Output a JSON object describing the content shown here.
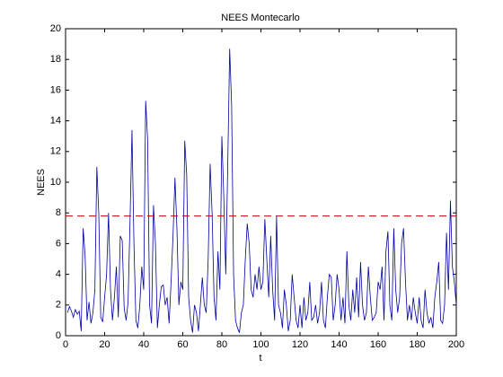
{
  "chart_data": {
    "type": "line",
    "title": "NEES Montecarlo",
    "xlabel": "t",
    "ylabel": "NEES",
    "x": [
      1,
      2,
      3,
      4,
      5,
      6,
      7,
      8,
      9,
      10,
      11,
      12,
      13,
      14,
      15,
      16,
      17,
      18,
      19,
      20,
      21,
      22,
      23,
      24,
      25,
      26,
      27,
      28,
      29,
      30,
      31,
      32,
      33,
      34,
      35,
      36,
      37,
      38,
      39,
      40,
      41,
      42,
      43,
      44,
      45,
      46,
      47,
      48,
      49,
      50,
      51,
      52,
      53,
      54,
      55,
      56,
      57,
      58,
      59,
      60,
      61,
      62,
      63,
      64,
      65,
      66,
      67,
      68,
      69,
      70,
      71,
      72,
      73,
      74,
      75,
      76,
      77,
      78,
      79,
      80,
      81,
      82,
      83,
      84,
      85,
      86,
      87,
      88,
      89,
      90,
      91,
      92,
      93,
      94,
      95,
      96,
      97,
      98,
      99,
      100,
      101,
      102,
      103,
      104,
      105,
      106,
      107,
      108,
      109,
      110,
      111,
      112,
      113,
      114,
      115,
      116,
      117,
      118,
      119,
      120,
      121,
      122,
      123,
      124,
      125,
      126,
      127,
      128,
      129,
      130,
      131,
      132,
      133,
      134,
      135,
      136,
      137,
      138,
      139,
      140,
      141,
      142,
      143,
      144,
      145,
      146,
      147,
      148,
      149,
      150,
      151,
      152,
      153,
      154,
      155,
      156,
      157,
      158,
      159,
      160,
      161,
      162,
      163,
      164,
      165,
      166,
      167,
      168,
      169,
      170,
      171,
      172,
      173,
      174,
      175,
      176,
      177,
      178,
      179,
      180,
      181,
      182,
      183,
      184,
      185,
      186,
      187,
      188,
      189,
      190,
      191,
      192,
      193,
      194,
      195,
      196,
      197,
      198,
      199,
      200
    ],
    "series": [
      {
        "color": "#0000a0",
        "values": [
          1.5,
          1.9,
          1.6,
          1.2,
          1.7,
          1.4,
          1.6,
          0.3,
          7.0,
          5.2,
          1.0,
          2.2,
          0.8,
          1.5,
          3.0,
          11.0,
          8.0,
          1.2,
          0.9,
          2.5,
          4.0,
          8.0,
          3.0,
          1.0,
          2.5,
          4.5,
          1.2,
          6.5,
          6.2,
          1.8,
          1.0,
          2.2,
          7.5,
          13.4,
          6.0,
          1.0,
          0.5,
          2.0,
          4.5,
          3.0,
          15.3,
          12.8,
          2.0,
          0.8,
          8.5,
          6.0,
          0.5,
          2.0,
          3.2,
          3.3,
          2.0,
          2.5,
          0.8,
          3.5,
          6.5,
          10.3,
          7.0,
          2.0,
          3.5,
          3.0,
          12.7,
          10.5,
          2.5,
          1.0,
          0.2,
          2.0,
          1.5,
          0.3,
          2.0,
          3.8,
          2.0,
          1.5,
          5.0,
          11.2,
          8.0,
          2.5,
          1.0,
          5.5,
          3.0,
          13.0,
          9.0,
          4.0,
          11.0,
          18.7,
          15.0,
          4.0,
          1.0,
          0.5,
          0.2,
          1.5,
          2.0,
          5.0,
          7.3,
          6.0,
          3.0,
          2.5,
          4.0,
          3.0,
          4.5,
          3.0,
          3.5,
          7.6,
          5.0,
          2.5,
          6.5,
          3.0,
          1.0,
          7.8,
          2.0,
          1.5,
          0.5,
          3.0,
          2.0,
          0.3,
          1.0,
          4.0,
          2.5,
          1.0,
          0.5,
          2.0,
          0.5,
          2.5,
          1.0,
          1.5,
          3.5,
          1.0,
          1.2,
          2.0,
          0.8,
          1.5,
          3.5,
          1.0,
          0.5,
          2.5,
          4.0,
          3.8,
          1.0,
          2.0,
          4.0,
          3.0,
          1.0,
          2.5,
          0.8,
          5.5,
          2.0,
          1.0,
          3.0,
          1.5,
          3.8,
          1.2,
          4.8,
          2.0,
          1.0,
          1.5,
          4.5,
          2.5,
          1.0,
          1.2,
          1.5,
          3.5,
          3.0,
          4.5,
          1.0,
          5.5,
          6.8,
          2.0,
          1.0,
          7.0,
          3.0,
          1.5,
          2.5,
          6.0,
          7.0,
          3.5,
          1.0,
          2.0,
          1.0,
          2.5,
          1.5,
          0.8,
          2.5,
          1.0,
          0.5,
          3.0,
          1.5,
          0.8,
          1.2,
          0.5,
          2.5,
          3.5,
          4.8,
          1.0,
          0.8,
          2.0,
          6.7,
          3.0,
          8.8,
          4.5,
          3.5,
          2.0
        ]
      }
    ],
    "threshold": 7.8,
    "threshold_color": "#cc0000",
    "xlim": [
      0,
      200
    ],
    "xticks": [
      0,
      20,
      40,
      60,
      80,
      100,
      120,
      140,
      160,
      180,
      200
    ],
    "ylim": [
      0,
      20
    ],
    "yticks": [
      0,
      2,
      4,
      6,
      8,
      10,
      12,
      14,
      16,
      18,
      20
    ]
  }
}
